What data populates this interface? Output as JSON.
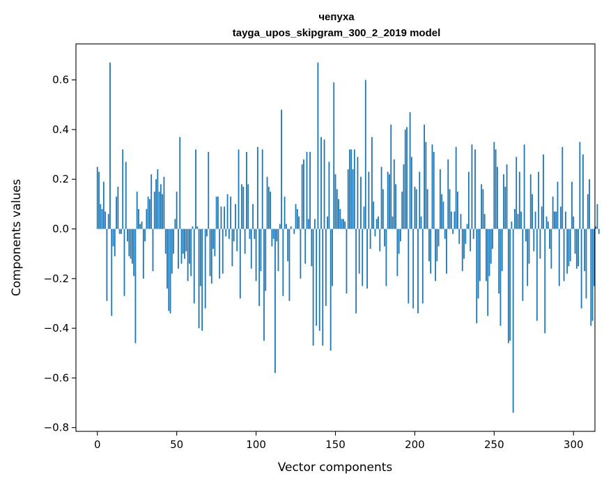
{
  "chart_data": {
    "type": "bar",
    "title": "чепуха",
    "subtitle": "tayga_upos_skipgram_300_2_2019 model",
    "xlabel": "Vector components",
    "ylabel": "Components values",
    "xlim": [
      -13.5,
      313.5
    ],
    "ylim": [
      -0.815,
      0.745
    ],
    "xticks": [
      0,
      50,
      100,
      150,
      200,
      250,
      300
    ],
    "xtick_labels": [
      "0",
      "50",
      "100",
      "150",
      "200",
      "250",
      "300"
    ],
    "yticks": [
      -0.8,
      -0.6,
      -0.4,
      -0.2,
      0.0,
      0.2,
      0.4,
      0.6
    ],
    "ytick_labels": [
      "−0.8",
      "−0.6",
      "−0.4",
      "−0.2",
      "0.0",
      "0.2",
      "0.4",
      "0.6"
    ],
    "color": "#1f77b4",
    "values": [
      0.25,
      0.23,
      0.1,
      0.08,
      0.19,
      0.07,
      -0.29,
      0.06,
      0.67,
      -0.35,
      -0.07,
      -0.11,
      0.13,
      0.17,
      -0.02,
      -0.02,
      0.32,
      -0.27,
      0.27,
      -0.05,
      -0.11,
      -0.12,
      -0.14,
      -0.19,
      -0.46,
      0.15,
      0.08,
      0.02,
      0.03,
      -0.2,
      -0.05,
      0.08,
      0.13,
      0.12,
      0.22,
      -0.17,
      0.15,
      0.2,
      0.24,
      0.15,
      0.18,
      0.14,
      0.21,
      -0.1,
      -0.24,
      -0.33,
      -0.34,
      -0.18,
      -0.1,
      0.04,
      0.15,
      -0.16,
      0.37,
      -0.14,
      -0.1,
      -0.12,
      -0.09,
      -0.21,
      -0.14,
      -0.19,
      0.01,
      -0.3,
      0.32,
      0.01,
      -0.4,
      -0.23,
      -0.41,
      0.0,
      -0.32,
      -0.03,
      0.31,
      -0.19,
      -0.22,
      -0.08,
      -0.11,
      0.13,
      0.13,
      -0.2,
      0.09,
      -0.18,
      0.09,
      -0.03,
      0.14,
      -0.04,
      0.13,
      -0.15,
      -0.05,
      0.1,
      -0.09,
      0.32,
      -0.28,
      0.18,
      0.17,
      -0.1,
      0.31,
      0.18,
      -0.04,
      -0.16,
      0.1,
      -0.04,
      -0.21,
      0.33,
      -0.31,
      -0.17,
      0.32,
      -0.45,
      -0.25,
      0.21,
      0.17,
      0.15,
      -0.07,
      -0.04,
      -0.58,
      -0.05,
      -0.17,
      0.02,
      0.48,
      -0.27,
      0.13,
      0.02,
      -0.13,
      -0.29,
      0.01,
      0.0,
      -0.02,
      0.1,
      0.08,
      0.05,
      -0.2,
      0.26,
      0.28,
      -0.14,
      0.31,
      0.04,
      0.31,
      -0.15,
      -0.47,
      0.04,
      -0.39,
      0.67,
      -0.41,
      0.37,
      -0.47,
      0.36,
      -0.31,
      0.05,
      0.27,
      -0.49,
      -0.23,
      0.59,
      0.22,
      0.16,
      0.12,
      0.08,
      0.04,
      0.04,
      0.03,
      -0.26,
      0.24,
      0.32,
      0.32,
      0.24,
      0.32,
      -0.34,
      0.29,
      -0.18,
      0.21,
      -0.23,
      0.09,
      0.6,
      -0.24,
      0.23,
      -0.08,
      0.37,
      0.11,
      -0.03,
      0.04,
      0.05,
      -0.09,
      0.25,
      0.16,
      -0.07,
      -0.23,
      0.23,
      0.22,
      0.42,
      0.05,
      0.28,
      0.18,
      -0.19,
      -0.1,
      -0.05,
      0.15,
      0.26,
      0.4,
      0.41,
      -0.3,
      0.47,
      0.29,
      -0.32,
      0.17,
      0.16,
      -0.34,
      0.23,
      0.05,
      -0.3,
      0.42,
      0.35,
      0.16,
      -0.13,
      -0.18,
      0.34,
      0.31,
      -0.21,
      -0.13,
      -0.07,
      0.24,
      0.14,
      0.11,
      -0.04,
      -0.18,
      0.28,
      0.16,
      0.07,
      -0.02,
      0.07,
      0.33,
      0.15,
      -0.06,
      0.06,
      -0.17,
      -0.12,
      -0.06,
      0.02,
      0.23,
      -0.09,
      0.34,
      -0.04,
      0.32,
      -0.38,
      -0.28,
      -0.21,
      0.18,
      0.16,
      0.06,
      -0.21,
      -0.35,
      -0.19,
      -0.14,
      -0.08,
      0.35,
      0.32,
      0.25,
      -0.26,
      -0.39,
      -0.17,
      0.22,
      0.17,
      0.26,
      -0.46,
      -0.45,
      0.03,
      -0.74,
      0.08,
      0.29,
      0.06,
      0.23,
      0.07,
      -0.29,
      0.34,
      -0.05,
      -0.23,
      -0.14,
      0.22,
      0.14,
      -0.09,
      0.07,
      -0.37,
      0.23,
      -0.12,
      0.09,
      0.3,
      -0.42,
      0.05,
      0.03,
      -0.08,
      -0.16,
      0.13,
      0.07,
      0.07,
      0.19,
      -0.23,
      0.09,
      0.33,
      -0.21,
      0.07,
      -0.18,
      -0.15,
      -0.13,
      0.19,
      0.05,
      -0.1,
      -0.16,
      -0.15,
      0.35,
      -0.32,
      0.3,
      -0.17,
      -0.28,
      0.14,
      0.2,
      -0.39,
      -0.37,
      -0.23,
      0.01,
      0.1,
      -0.02
    ]
  }
}
